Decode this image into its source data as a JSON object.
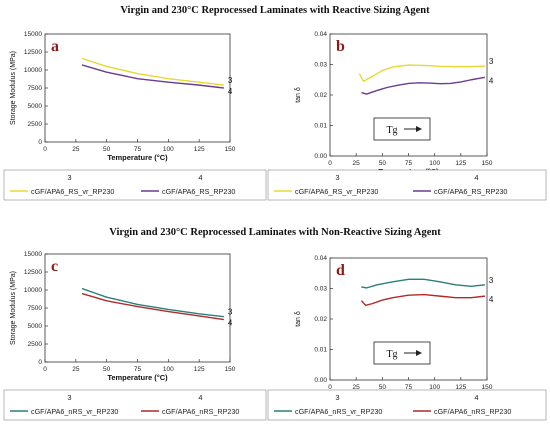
{
  "figure": {
    "title_top": "Virgin and 230°C Reprocessed Laminates with Reactive Sizing Agent",
    "title_bottom": "Virgin and 230°C Reprocessed Laminates with Non-Reactive Sizing Agent"
  },
  "chart_data": [
    {
      "panel": "a",
      "type": "line",
      "xlabel": "Temperature (°C)",
      "ylabel": "Storage Modulus (MPa)",
      "xlim": [
        0,
        150
      ],
      "ylim": [
        0,
        15000
      ],
      "xticks": [
        "0",
        "25",
        "50",
        "75",
        "100",
        "125",
        "150"
      ],
      "yticks": [
        "0",
        "2500",
        "5000",
        "7500",
        "10000",
        "12500",
        "15000"
      ],
      "series": [
        {
          "name": "cGF/APA6_RS_vr_RP230",
          "color": "#e8d835",
          "end_label": "3",
          "legend_number": "3",
          "x": [
            30,
            50,
            75,
            100,
            125,
            145
          ],
          "y": [
            11600,
            10500,
            9500,
            8800,
            8300,
            7900
          ]
        },
        {
          "name": "cGF/APA6_RS_RP230",
          "color": "#6a3d8f",
          "end_label": "4",
          "legend_number": "4",
          "x": [
            30,
            50,
            75,
            100,
            125,
            145
          ],
          "y": [
            10700,
            9700,
            8800,
            8300,
            7900,
            7500
          ]
        }
      ]
    },
    {
      "panel": "b",
      "type": "line",
      "xlabel": "Temperature (°C)",
      "ylabel": "tan δ",
      "xlim": [
        0,
        150
      ],
      "ylim": [
        0,
        0.04
      ],
      "xticks": [
        "0",
        "25",
        "50",
        "75",
        "100",
        "125",
        "150"
      ],
      "yticks": [
        "0.00",
        "0.01",
        "0.02",
        "0.03",
        "0.04"
      ],
      "annotation": "Tg",
      "series": [
        {
          "name": "cGF/APA6_RS_vr_RP230",
          "color": "#e8d835",
          "end_label": "3",
          "legend_number": "3",
          "x": [
            28,
            32,
            40,
            50,
            60,
            75,
            90,
            105,
            120,
            135,
            148
          ],
          "y": [
            0.027,
            0.0245,
            0.026,
            0.028,
            0.0292,
            0.0298,
            0.0297,
            0.0294,
            0.0293,
            0.0293,
            0.0295
          ]
        },
        {
          "name": "cGF/APA6_RS_RP230",
          "color": "#6a3d8f",
          "end_label": "4",
          "legend_number": "4",
          "x": [
            30,
            35,
            45,
            55,
            65,
            75,
            85,
            95,
            105,
            115,
            125,
            135,
            148
          ],
          "y": [
            0.0208,
            0.0203,
            0.0215,
            0.0225,
            0.0232,
            0.0238,
            0.024,
            0.0239,
            0.0237,
            0.0238,
            0.0243,
            0.025,
            0.0258
          ]
        }
      ]
    },
    {
      "panel": "c",
      "type": "line",
      "xlabel": "Temperature (°C)",
      "ylabel": "Storage Modulus (MPa)",
      "xlim": [
        0,
        150
      ],
      "ylim": [
        0,
        15000
      ],
      "xticks": [
        "0",
        "25",
        "50",
        "75",
        "100",
        "125",
        "150"
      ],
      "yticks": [
        "0",
        "2500",
        "5000",
        "7500",
        "10000",
        "12500",
        "15000"
      ],
      "series": [
        {
          "name": "cGF/APA6_nRS_vr_RP230",
          "color": "#2a7f7a",
          "end_label": "3",
          "legend_number": "3",
          "x": [
            30,
            40,
            50,
            75,
            100,
            125,
            145
          ],
          "y": [
            10200,
            9600,
            9000,
            8000,
            7300,
            6700,
            6300
          ]
        },
        {
          "name": "cGF/APA6_nRS_RP230",
          "color": "#b22a2a",
          "end_label": "4",
          "legend_number": "4",
          "x": [
            30,
            40,
            50,
            75,
            100,
            125,
            145
          ],
          "y": [
            9500,
            9000,
            8500,
            7700,
            7000,
            6400,
            5900
          ]
        }
      ]
    },
    {
      "panel": "d",
      "type": "line",
      "xlabel": "Temperature (°C)",
      "ylabel": "tan δ",
      "xlim": [
        0,
        150
      ],
      "ylim": [
        0,
        0.04
      ],
      "xticks": [
        "0",
        "25",
        "50",
        "75",
        "100",
        "125",
        "150"
      ],
      "yticks": [
        "0.00",
        "0.01",
        "0.02",
        "0.03",
        "0.04"
      ],
      "annotation": "Tg",
      "series": [
        {
          "name": "cGF/APA6_nRS_vr_RP230",
          "color": "#2a7f7a",
          "end_label": "3",
          "legend_number": "3",
          "x": [
            30,
            35,
            45,
            60,
            75,
            90,
            105,
            120,
            135,
            148
          ],
          "y": [
            0.0305,
            0.0302,
            0.0312,
            0.0322,
            0.033,
            0.033,
            0.0322,
            0.0312,
            0.0307,
            0.0312
          ]
        },
        {
          "name": "cGF/APA6_nRS_RP230",
          "color": "#b22a2a",
          "end_label": "4",
          "legend_number": "4",
          "x": [
            30,
            34,
            40,
            50,
            60,
            75,
            90,
            105,
            120,
            135,
            148
          ],
          "y": [
            0.026,
            0.0245,
            0.025,
            0.0262,
            0.027,
            0.0278,
            0.028,
            0.0275,
            0.027,
            0.027,
            0.0275
          ]
        }
      ]
    }
  ]
}
